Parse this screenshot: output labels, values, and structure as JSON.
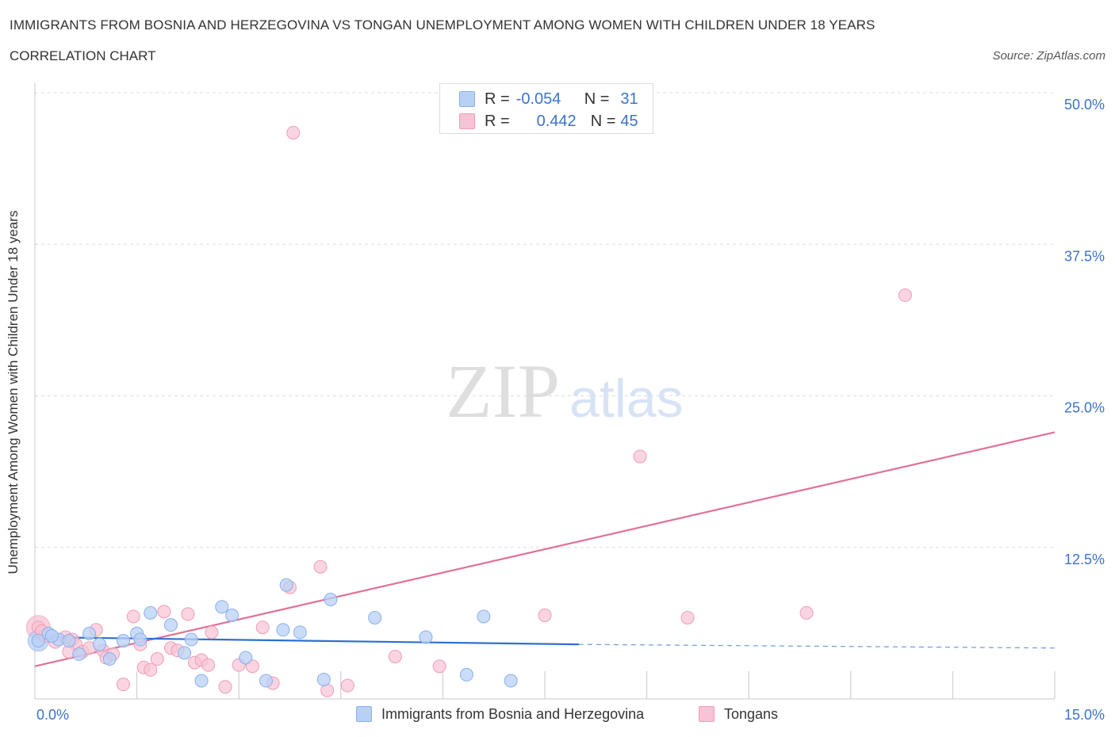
{
  "title": "IMMIGRANTS FROM BOSNIA AND HERZEGOVINA VS TONGAN UNEMPLOYMENT AMONG WOMEN WITH CHILDREN UNDER 18 YEARS",
  "subtitle": "CORRELATION CHART",
  "source": "Source: ZipAtlas.com",
  "watermark": {
    "zip": "ZIP",
    "atlas": "atlas"
  },
  "legend": {
    "r_label": "R =",
    "n_label": "N =",
    "series1": {
      "r": "-0.054",
      "n": "31"
    },
    "series2": {
      "r": "0.442",
      "n": "45"
    }
  },
  "colors": {
    "blue_fill": "#b8d0f5",
    "blue_stroke": "#8ab0e8",
    "blue_line": "#2f6fcf",
    "pink_fill": "#f8c3d4",
    "pink_stroke": "#ef9bb6",
    "pink_line": "#e0709a",
    "tick_text": "#3b73c8",
    "grid": "#dcdcdc"
  },
  "chart_data": {
    "type": "scatter",
    "title": "IMMIGRANTS FROM BOSNIA AND HERZEGOVINA VS TONGAN UNEMPLOYMENT AMONG WOMEN WITH CHILDREN UNDER 18 YEARS",
    "xlabel": "",
    "ylabel": "Unemployment Among Women with Children Under 18 years",
    "xlim": [
      0,
      15
    ],
    "ylim": [
      0,
      50
    ],
    "x_tick_labels": [
      "0.0%",
      "15.0%"
    ],
    "y_ticks": [
      12.5,
      25.0,
      37.5,
      50.0
    ],
    "y_tick_labels": [
      "12.5%",
      "25.0%",
      "37.5%",
      "50.0%"
    ],
    "series": [
      {
        "name": "Immigrants from Bosnia and Herzegovina",
        "color": "blue",
        "r": -0.054,
        "n": 31,
        "points": [
          [
            0.05,
            4.8
          ],
          [
            0.2,
            5.4
          ],
          [
            0.35,
            4.9
          ],
          [
            0.5,
            4.8
          ],
          [
            0.65,
            3.7
          ],
          [
            0.8,
            5.4
          ],
          [
            0.95,
            4.5
          ],
          [
            1.1,
            3.3
          ],
          [
            1.3,
            4.8
          ],
          [
            1.5,
            5.4
          ],
          [
            1.7,
            7.1
          ],
          [
            2.0,
            6.1
          ],
          [
            2.2,
            3.8
          ],
          [
            2.3,
            4.9
          ],
          [
            2.45,
            1.5
          ],
          [
            2.75,
            7.6
          ],
          [
            2.9,
            6.9
          ],
          [
            3.1,
            3.4
          ],
          [
            3.4,
            1.5
          ],
          [
            3.65,
            5.7
          ],
          [
            3.7,
            9.4
          ],
          [
            3.9,
            5.5
          ],
          [
            4.25,
            1.6
          ],
          [
            4.35,
            8.2
          ],
          [
            5.0,
            6.7
          ],
          [
            5.75,
            5.1
          ],
          [
            6.35,
            2.0
          ],
          [
            6.6,
            6.8
          ],
          [
            7.0,
            1.5
          ],
          [
            0.25,
            5.2
          ],
          [
            1.55,
            4.9
          ]
        ],
        "trend": {
          "x": [
            0,
            8.0
          ],
          "y": [
            5.1,
            4.5
          ],
          "dashed_to": [
            15,
            4.2
          ]
        }
      },
      {
        "name": "Tongans",
        "color": "pink",
        "points": [
          [
            0.05,
            5.9
          ],
          [
            0.15,
            5.2
          ],
          [
            0.3,
            4.7
          ],
          [
            0.45,
            5.1
          ],
          [
            0.55,
            4.9
          ],
          [
            0.6,
            4.5
          ],
          [
            0.7,
            3.9
          ],
          [
            0.8,
            4.2
          ],
          [
            0.9,
            5.7
          ],
          [
            1.0,
            4.0
          ],
          [
            1.05,
            3.4
          ],
          [
            1.15,
            3.7
          ],
          [
            1.3,
            1.2
          ],
          [
            1.45,
            6.8
          ],
          [
            1.55,
            4.5
          ],
          [
            1.6,
            2.6
          ],
          [
            1.7,
            2.4
          ],
          [
            1.8,
            3.3
          ],
          [
            1.9,
            7.2
          ],
          [
            2.0,
            4.2
          ],
          [
            2.1,
            4.0
          ],
          [
            2.25,
            7.0
          ],
          [
            2.35,
            3.0
          ],
          [
            2.45,
            3.2
          ],
          [
            2.55,
            2.8
          ],
          [
            2.6,
            5.5
          ],
          [
            2.8,
            1.0
          ],
          [
            3.0,
            2.8
          ],
          [
            3.2,
            2.7
          ],
          [
            3.35,
            5.9
          ],
          [
            3.5,
            1.3
          ],
          [
            3.75,
            9.2
          ],
          [
            3.8,
            46.7
          ],
          [
            4.2,
            10.9
          ],
          [
            4.3,
            0.7
          ],
          [
            4.6,
            1.1
          ],
          [
            5.3,
            3.5
          ],
          [
            5.95,
            2.7
          ],
          [
            7.5,
            6.9
          ],
          [
            8.9,
            20.0
          ],
          [
            9.6,
            6.7
          ],
          [
            11.35,
            7.1
          ],
          [
            12.8,
            33.3
          ],
          [
            0.1,
            5.6
          ],
          [
            0.5,
            3.9
          ]
        ],
        "r": 0.442,
        "n": 45,
        "trend": {
          "x": [
            0,
            15
          ],
          "y": [
            2.7,
            22.0
          ]
        }
      }
    ]
  }
}
